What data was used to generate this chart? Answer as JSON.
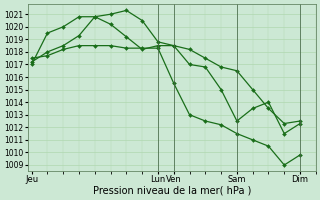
{
  "bg_color": "#cce8d4",
  "grid_color": "#c8e8c8",
  "line_color": "#1a6e1a",
  "marker": "D",
  "markersize": 2.0,
  "linewidth": 0.9,
  "ylabel_ticks": [
    1009,
    1010,
    1011,
    1012,
    1013,
    1014,
    1015,
    1016,
    1017,
    1018,
    1019,
    1020,
    1021
  ],
  "ylim": [
    1008.5,
    1021.8
  ],
  "xlabel": "Pression niveau de la mer( hPa )",
  "xlabel_fontsize": 7.0,
  "xtick_fontsize": 6.0,
  "ytick_fontsize": 5.5,
  "xtick_labels": [
    "Jeu",
    "Lun",
    "Ven",
    "Sam",
    "Dim"
  ],
  "xtick_positions": [
    0,
    32,
    36,
    52,
    68
  ],
  "xlim": [
    -1,
    72
  ],
  "vlines_x": [
    32,
    36,
    52,
    68
  ],
  "vline_color": "#446644",
  "line1": {
    "x": [
      0,
      4,
      8,
      12,
      16,
      20,
      24,
      28,
      32,
      36,
      40,
      44,
      48,
      52,
      56,
      60,
      64,
      68
    ],
    "y": [
      1017.0,
      1019.5,
      1020.0,
      1020.8,
      1020.8,
      1020.2,
      1019.2,
      1018.2,
      1018.5,
      1018.5,
      1017.0,
      1016.8,
      1015.0,
      1012.5,
      1013.5,
      1014.0,
      1011.5,
      1012.3
    ]
  },
  "line2": {
    "x": [
      0,
      4,
      8,
      12,
      16,
      20,
      24,
      28,
      32,
      36,
      40,
      44,
      48,
      52,
      56,
      60,
      64,
      68
    ],
    "y": [
      1017.2,
      1018.0,
      1018.5,
      1019.3,
      1020.8,
      1021.0,
      1021.3,
      1020.5,
      1018.8,
      1018.5,
      1018.2,
      1017.5,
      1016.8,
      1016.5,
      1015.0,
      1013.5,
      1012.3,
      1012.5
    ]
  },
  "line3": {
    "x": [
      0,
      4,
      8,
      12,
      16,
      20,
      24,
      28,
      32,
      36,
      40,
      44,
      48,
      52,
      56,
      60,
      64,
      68
    ],
    "y": [
      1017.5,
      1017.7,
      1018.2,
      1018.5,
      1018.5,
      1018.5,
      1018.3,
      1018.3,
      1018.3,
      1015.5,
      1013.0,
      1012.5,
      1012.2,
      1011.5,
      1011.0,
      1010.5,
      1009.0,
      1009.8
    ]
  }
}
